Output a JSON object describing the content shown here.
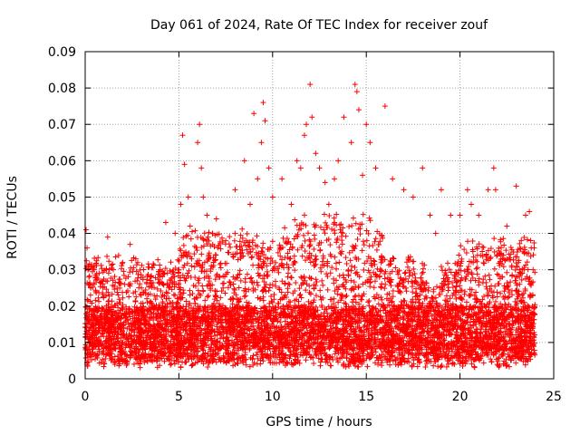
{
  "chart_data": {
    "type": "scatter",
    "title": "Day 061 of 2024, Rate Of TEC Index for receiver zouf",
    "xlabel": "GPS time / hours",
    "ylabel": "ROTI / TECUs",
    "xlim": [
      0,
      25
    ],
    "ylim": [
      0,
      0.09
    ],
    "x_ticks": [
      "0",
      "5",
      "10",
      "15",
      "20",
      "25"
    ],
    "y_ticks": [
      "0",
      "0.01",
      "0.02",
      "0.03",
      "0.04",
      "0.05",
      "0.06",
      "0.07",
      "0.08",
      "0.09"
    ],
    "grid": true,
    "marker": "+",
    "color": "#ff0000",
    "series": [
      {
        "x": [
          0.05,
          0.1,
          0.15,
          0.2,
          0.3,
          1.2,
          1.5,
          2.0,
          2.4,
          2.7,
          3.0,
          3.5,
          4.0,
          4.3,
          4.8,
          5.1,
          5.2,
          5.3,
          5.5,
          5.6,
          6.0,
          6.1,
          6.2,
          6.3,
          6.5,
          6.8,
          7.0,
          7.5,
          8.0,
          8.5,
          8.8,
          9.0,
          9.2,
          9.4,
          9.5,
          9.6,
          9.8,
          10.0,
          10.5,
          11.0,
          11.3,
          11.5,
          11.7,
          11.8,
          12.0,
          12.1,
          12.3,
          12.5,
          12.8,
          13.0,
          13.3,
          13.5,
          13.8,
          14.2,
          14.4,
          14.5,
          14.6,
          14.8,
          15.0,
          15.2,
          15.5,
          16.0,
          16.4,
          17.0,
          17.5,
          18.0,
          18.4,
          18.7,
          19.0,
          19.5,
          20.0,
          20.4,
          20.6,
          21.0,
          21.5,
          21.8,
          21.9,
          22.5,
          23.0,
          23.5,
          23.7,
          23.8,
          23.9
        ],
        "y": [
          0.041,
          0.036,
          0.03,
          0.028,
          0.025,
          0.039,
          0.03,
          0.032,
          0.037,
          0.033,
          0.025,
          0.028,
          0.03,
          0.043,
          0.04,
          0.048,
          0.067,
          0.059,
          0.05,
          0.042,
          0.065,
          0.07,
          0.058,
          0.05,
          0.045,
          0.04,
          0.044,
          0.038,
          0.052,
          0.06,
          0.048,
          0.073,
          0.055,
          0.065,
          0.076,
          0.071,
          0.058,
          0.05,
          0.055,
          0.048,
          0.06,
          0.058,
          0.067,
          0.07,
          0.081,
          0.072,
          0.062,
          0.058,
          0.054,
          0.048,
          0.055,
          0.06,
          0.072,
          0.065,
          0.081,
          0.079,
          0.074,
          0.056,
          0.07,
          0.065,
          0.058,
          0.075,
          0.055,
          0.052,
          0.05,
          0.058,
          0.045,
          0.04,
          0.052,
          0.045,
          0.045,
          0.052,
          0.048,
          0.045,
          0.052,
          0.058,
          0.052,
          0.042,
          0.053,
          0.045,
          0.046,
          0.036,
          0.03
        ]
      }
    ]
  }
}
